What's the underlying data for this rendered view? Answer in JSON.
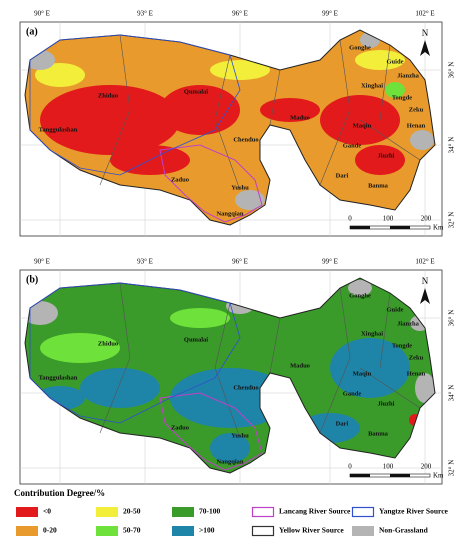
{
  "longitudes": [
    "90° E",
    "93° E",
    "96° E",
    "99° E",
    "102° E"
  ],
  "latitudes": [
    "36° N",
    "34° N",
    "32° N"
  ],
  "panels": [
    {
      "label": "(a)",
      "north": "N",
      "scale": [
        "0",
        "100",
        "200"
      ],
      "unit": "Km",
      "places": [
        "Gonghe",
        "Guide",
        "Jianzha",
        "Xinghai",
        "Tongde",
        "Zeku",
        "Henan",
        "Maqin",
        "Gande",
        "Jiuzhi",
        "Dari",
        "Banma",
        "Maduo",
        "Qumalai",
        "Zhiduo",
        "Tanggulashan",
        "Chenduo",
        "Zaduo",
        "Yushu",
        "Nangqian"
      ]
    },
    {
      "label": "(b)",
      "north": "N",
      "scale": [
        "0",
        "100",
        "200"
      ],
      "unit": "Km",
      "places": [
        "Gonghe",
        "Guide",
        "Jianzha",
        "Xinghai",
        "Tongde",
        "Zeku",
        "Henan",
        "Maqin",
        "Gande",
        "Jiuzhi",
        "Dari",
        "Banma",
        "Maduo",
        "Qumalai",
        "Zhiduo",
        "Tanggulashan",
        "Chenduo",
        "Zaduo",
        "Yushu",
        "Nangqian"
      ]
    }
  ],
  "legend": {
    "title": "Contribution Degree/%",
    "items": [
      {
        "label": "<0",
        "color": "#e31a1c",
        "kind": "fill"
      },
      {
        "label": "0-20",
        "color": "#e89a2c",
        "kind": "fill"
      },
      {
        "label": "20-50",
        "color": "#f2ee3a",
        "kind": "fill"
      },
      {
        "label": "50-70",
        "color": "#6ee23a",
        "kind": "fill"
      },
      {
        "label": "70-100",
        "color": "#3a9a2a",
        "kind": "fill"
      },
      {
        "label": ">100",
        "color": "#1f85a8",
        "kind": "fill"
      },
      {
        "label": "Lancang River Source",
        "color": "#c040c8",
        "kind": "outline"
      },
      {
        "label": "Yellow River Source",
        "color": "#333333",
        "kind": "outline"
      },
      {
        "label": "Yangtze River Source",
        "color": "#3050d0",
        "kind": "outline"
      },
      {
        "label": "Non-Grassland",
        "color": "#b4b4b4",
        "kind": "fill"
      }
    ]
  }
}
